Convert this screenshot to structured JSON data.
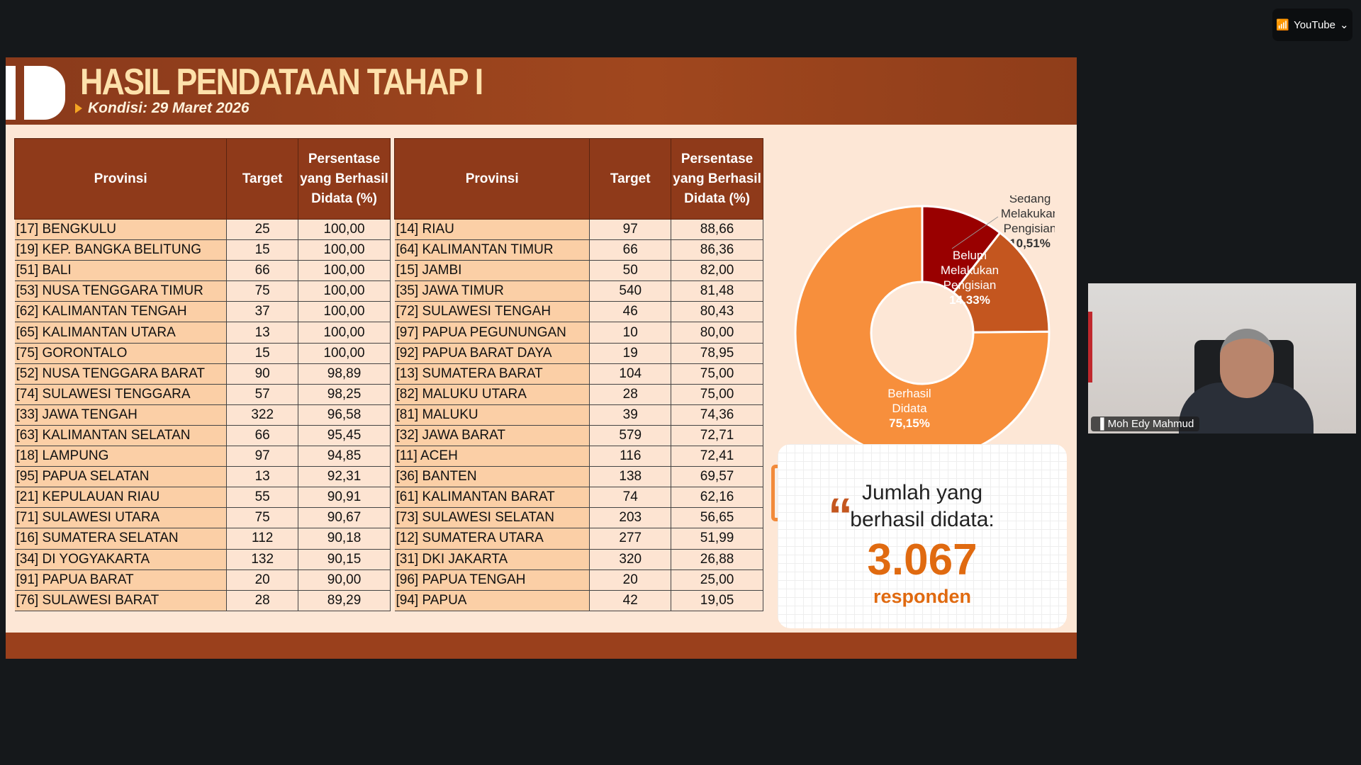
{
  "topbar": {
    "youtube_label": "YouTube",
    "cast_icon": "cast-icon",
    "chevron": "chevron-down-icon"
  },
  "slide": {
    "title": "HASIL PENDATAAN TAHAP I",
    "subtitle": "Kondisi: 29 Maret 2026",
    "columns": [
      "Provinsi",
      "Target",
      "Persentase yang Berhasil Didata (%)"
    ],
    "left_rows": [
      [
        "[17] BENGKULU",
        "25",
        "100,00"
      ],
      [
        "[19] KEP. BANGKA BELITUNG",
        "15",
        "100,00"
      ],
      [
        "[51] BALI",
        "66",
        "100,00"
      ],
      [
        "[53] NUSA TENGGARA TIMUR",
        "75",
        "100,00"
      ],
      [
        "[62] KALIMANTAN TENGAH",
        "37",
        "100,00"
      ],
      [
        "[65] KALIMANTAN UTARA",
        "13",
        "100,00"
      ],
      [
        "[75] GORONTALO",
        "15",
        "100,00"
      ],
      [
        "[52] NUSA TENGGARA BARAT",
        "90",
        "98,89"
      ],
      [
        "[74] SULAWESI TENGGARA",
        "57",
        "98,25"
      ],
      [
        "[33] JAWA TENGAH",
        "322",
        "96,58"
      ],
      [
        "[63] KALIMANTAN SELATAN",
        "66",
        "95,45"
      ],
      [
        "[18] LAMPUNG",
        "97",
        "94,85"
      ],
      [
        "[95] PAPUA SELATAN",
        "13",
        "92,31"
      ],
      [
        "[21] KEPULAUAN RIAU",
        "55",
        "90,91"
      ],
      [
        "[71] SULAWESI UTARA",
        "75",
        "90,67"
      ],
      [
        "[16] SUMATERA SELATAN",
        "112",
        "90,18"
      ],
      [
        "[34] DI YOGYAKARTA",
        "132",
        "90,15"
      ],
      [
        "[91] PAPUA BARAT",
        "20",
        "90,00"
      ],
      [
        "[76] SULAWESI BARAT",
        "28",
        "89,29"
      ]
    ],
    "right_rows": [
      [
        "[14] RIAU",
        "97",
        "88,66"
      ],
      [
        "[64] KALIMANTAN TIMUR",
        "66",
        "86,36"
      ],
      [
        "[15] JAMBI",
        "50",
        "82,00"
      ],
      [
        "[35] JAWA TIMUR",
        "540",
        "81,48"
      ],
      [
        "[72] SULAWESI TENGAH",
        "46",
        "80,43"
      ],
      [
        "[97] PAPUA PEGUNUNGAN",
        "10",
        "80,00"
      ],
      [
        "[92] PAPUA BARAT DAYA",
        "19",
        "78,95"
      ],
      [
        "[13] SUMATERA BARAT",
        "104",
        "75,00"
      ],
      [
        "[82] MALUKU UTARA",
        "28",
        "75,00"
      ],
      [
        "[81] MALUKU",
        "39",
        "74,36"
      ],
      [
        "[32] JAWA BARAT",
        "579",
        "72,71"
      ],
      [
        "[11] ACEH",
        "116",
        "72,41"
      ],
      [
        "[36] BANTEN",
        "138",
        "69,57"
      ],
      [
        "[61] KALIMANTAN BARAT",
        "74",
        "62,16"
      ],
      [
        "[73] SULAWESI SELATAN",
        "203",
        "56,65"
      ],
      [
        "[12] SUMATERA UTARA",
        "277",
        "51,99"
      ],
      [
        "[31] DKI JAKARTA",
        "320",
        "26,88"
      ],
      [
        "[96] PAPUA TENGAH",
        "20",
        "25,00"
      ],
      [
        "[94] PAPUA",
        "42",
        "19,05"
      ]
    ],
    "card": {
      "line1": "Jumlah yang",
      "line2": "berhasil didata:",
      "number": "3.067",
      "unit": "responden"
    }
  },
  "chart_data": {
    "type": "pie",
    "donut": true,
    "slices": [
      {
        "name": "Sedang Melakukan Pengisian",
        "label": "10,51%",
        "value": 10.51,
        "color": "#990000"
      },
      {
        "name": "Belum Melakukan Pengisian",
        "label": "14,33%",
        "value": 14.33,
        "color": "#c4561f"
      },
      {
        "name": "Berhasil Didata",
        "label": "75,15%",
        "value": 75.15,
        "color": "#f78f3c"
      }
    ]
  },
  "video": {
    "participant_name": "Moh Edy Mahmud"
  }
}
